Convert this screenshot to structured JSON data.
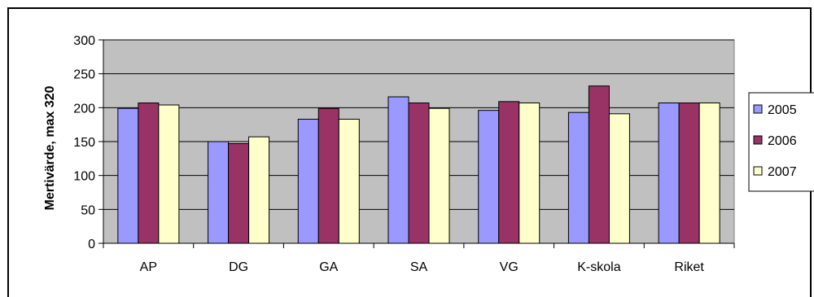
{
  "chart_data": {
    "type": "bar",
    "title": "",
    "xlabel": "",
    "ylabel": "Mertivärde, max 320",
    "ylim": [
      0,
      300
    ],
    "yticks": [
      0,
      50,
      100,
      150,
      200,
      250,
      300
    ],
    "grid": true,
    "legend_position": "right",
    "categories": [
      "AP",
      "DG",
      "GA",
      "SA",
      "VG",
      "K-skola",
      "Riket"
    ],
    "series": [
      {
        "name": "2005",
        "color": "#9999ff",
        "values": [
          199,
          150,
          183,
          216,
          196,
          193,
          207
        ]
      },
      {
        "name": "2006",
        "color": "#993366",
        "values": [
          207,
          147,
          199,
          207,
          209,
          232,
          207
        ]
      },
      {
        "name": "2007",
        "color": "#ffffcc",
        "values": [
          204,
          157,
          183,
          199,
          207,
          191,
          207
        ]
      }
    ],
    "colors": {
      "plot_background": "#c0c0c0",
      "gridline": "#000000",
      "bar_outline": "#000000",
      "frame": "#000000"
    }
  }
}
